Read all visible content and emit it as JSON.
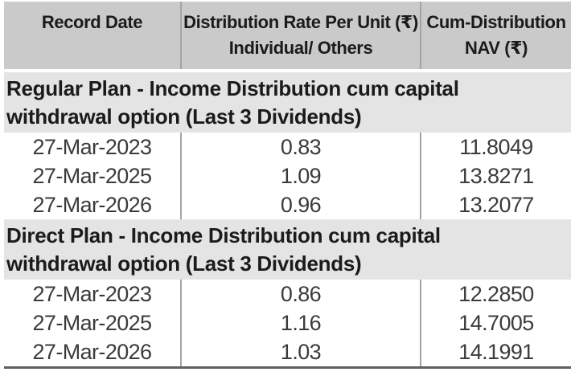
{
  "colors": {
    "header_bg": "#cacaca",
    "section_bg": "#e4e4e4",
    "divider": "#a3a3a3",
    "bottom_border": "#606060",
    "header_text": "#1b1b1b",
    "data_text": "#3b3b3b",
    "page_bg": "#ffffff"
  },
  "table": {
    "header": {
      "col1": "Record Date",
      "col2_line1": "Distribution Rate Per Unit (₹)",
      "col2_line2": "Individual/ Others",
      "col3_line1": "Cum-Distribution",
      "col3_line2": "NAV (₹)"
    },
    "sections": [
      {
        "title": "Regular Plan - Income Distribution cum capital withdrawal option (Last 3 Dividends)",
        "rows": [
          [
            "27-Mar-2023",
            "0.83",
            "11.8049"
          ],
          [
            "27-Mar-2025",
            "1.09",
            "13.8271"
          ],
          [
            "27-Mar-2026",
            "0.96",
            "13.2077"
          ]
        ]
      },
      {
        "title": "Direct Plan - Income Distribution cum capital withdrawal option (Last 3 Dividends)",
        "rows": [
          [
            "27-Mar-2023",
            "0.86",
            "12.2850"
          ],
          [
            "27-Mar-2025",
            "1.16",
            "14.7005"
          ],
          [
            "27-Mar-2026",
            "1.03",
            "14.1991"
          ]
        ]
      }
    ]
  }
}
